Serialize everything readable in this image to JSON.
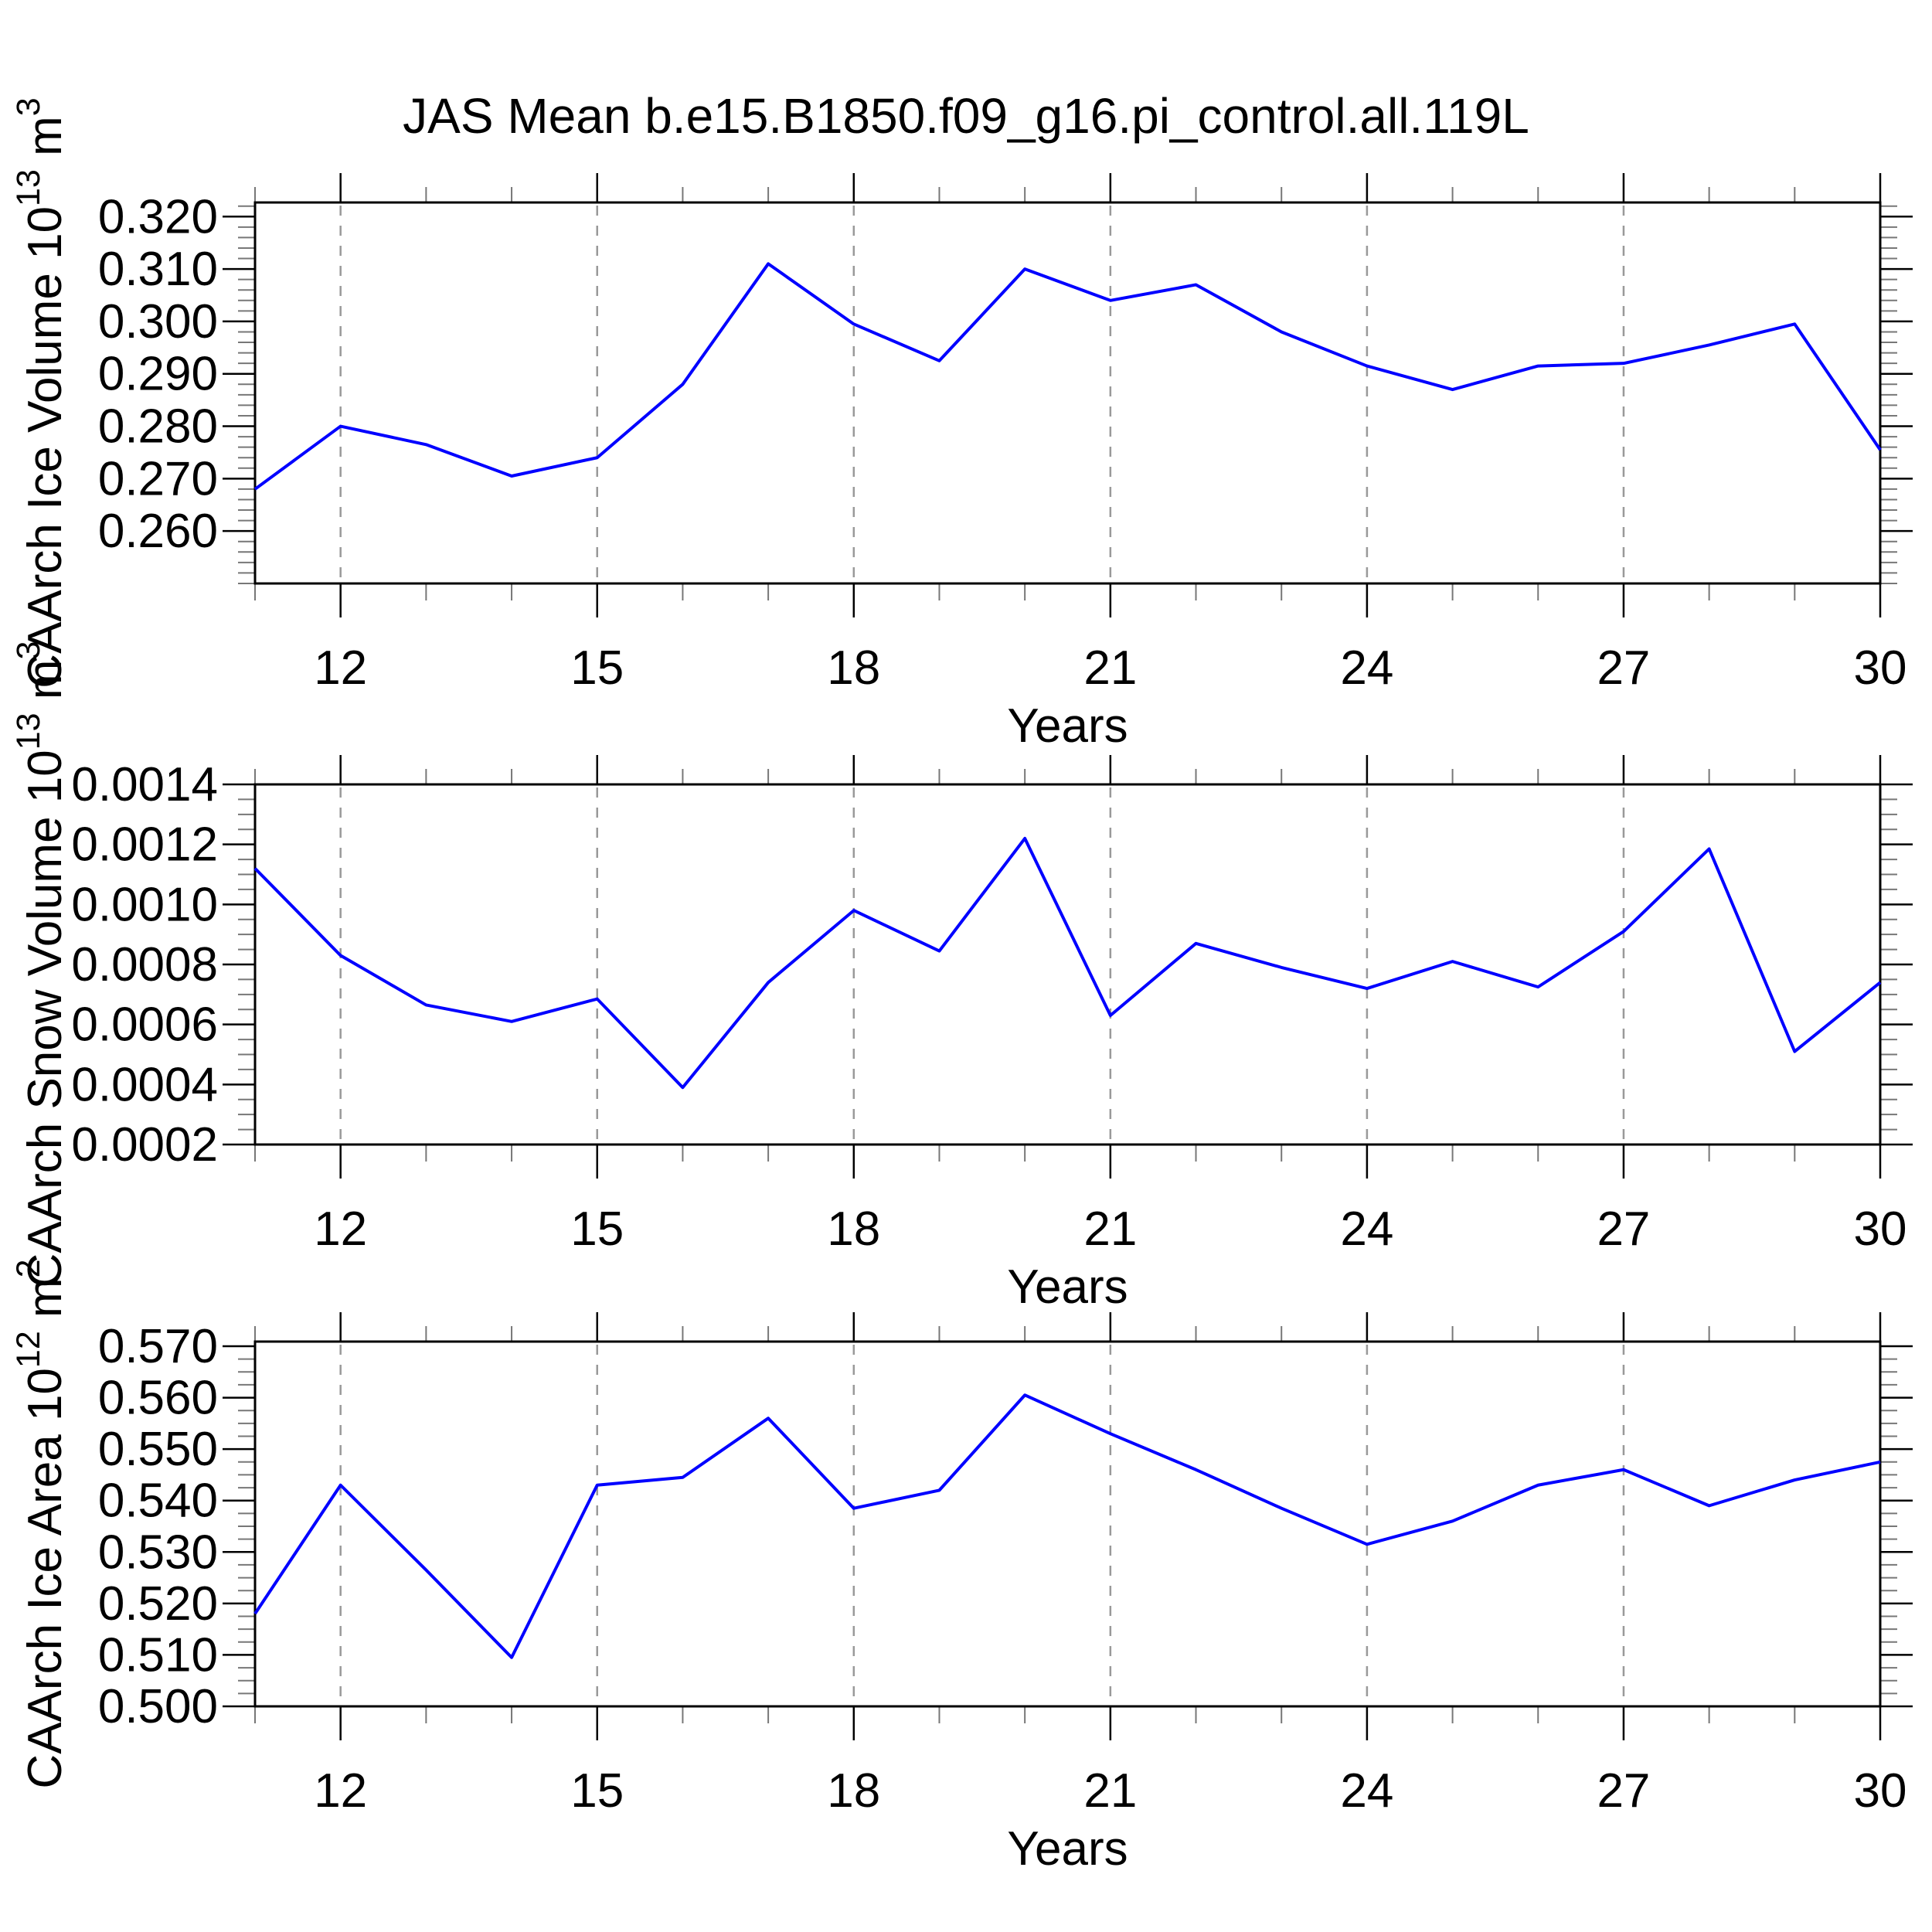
{
  "title": "JAS Mean b.e15.B1850.f09_g16.pi_control.all.119L",
  "xlabel": "Years",
  "xlim": [
    11,
    30
  ],
  "x_major_ticks": [
    12,
    15,
    18,
    21,
    24,
    27,
    30
  ],
  "x_gridline_years": [
    12,
    15,
    18,
    21,
    24,
    27
  ],
  "colors": {
    "line": "#0000ff",
    "frame": "#000000",
    "major_tick": "#000000",
    "minor_tick": "#777777",
    "gridline": "#999999",
    "text": "#000000",
    "background": "#ffffff"
  },
  "chart_data": [
    {
      "type": "line",
      "id": "ice-volume",
      "ylabel": "CAArch Ice Volume 10^13 m^3",
      "xlabel": "Years",
      "x": [
        11,
        12,
        13,
        14,
        15,
        16,
        17,
        18,
        19,
        20,
        21,
        22,
        23,
        24,
        25,
        26,
        27,
        28,
        29,
        30
      ],
      "values": [
        0.268,
        0.28,
        0.2765,
        0.2705,
        0.274,
        0.288,
        0.311,
        0.2995,
        0.2925,
        0.31,
        0.304,
        0.307,
        0.298,
        0.2915,
        0.287,
        0.2915,
        0.292,
        0.2955,
        0.2995,
        0.2755
      ],
      "ylim": [
        0.25,
        0.3227
      ],
      "yticks": [
        0.26,
        0.27,
        0.28,
        0.29,
        0.3,
        0.31,
        0.32
      ],
      "ytick_decimals": 3,
      "y_minor_step": 0.002,
      "grid": "vertical-dashed",
      "legend": "none"
    },
    {
      "type": "line",
      "id": "snow-volume",
      "ylabel": "CAArch Snow Volume 10^13 m^3",
      "xlabel": "Years",
      "x": [
        11,
        12,
        13,
        14,
        15,
        16,
        17,
        18,
        19,
        20,
        21,
        22,
        23,
        24,
        25,
        26,
        27,
        28,
        29,
        30
      ],
      "values": [
        0.00112,
        0.00083,
        0.000665,
        0.00061,
        0.000685,
        0.00039,
        0.00074,
        0.00098,
        0.000845,
        0.00122,
        0.00063,
        0.00087,
        0.00079,
        0.00072,
        0.00081,
        0.000725,
        0.00091,
        0.001185,
        0.00051,
        0.00074
      ],
      "ylim": [
        0.0002,
        0.0014
      ],
      "yticks": [
        0.0002,
        0.0004,
        0.0006,
        0.0008,
        0.001,
        0.0012,
        0.0014
      ],
      "ytick_decimals": 4,
      "y_minor_step": 5e-05,
      "grid": "vertical-dashed",
      "legend": "none"
    },
    {
      "type": "line",
      "id": "ice-area",
      "ylabel": "CAArch Ice Area 10^12 m^2",
      "xlabel": "Years",
      "x": [
        11,
        12,
        13,
        14,
        15,
        16,
        17,
        18,
        19,
        20,
        21,
        22,
        23,
        24,
        25,
        26,
        27,
        28,
        29,
        30
      ],
      "values": [
        0.518,
        0.543,
        0.5265,
        0.5095,
        0.543,
        0.5445,
        0.556,
        0.5385,
        0.542,
        0.5605,
        0.553,
        0.546,
        0.5385,
        0.5315,
        0.536,
        0.543,
        0.546,
        0.539,
        0.544,
        0.5475
      ],
      "ylim": [
        0.5,
        0.5709
      ],
      "yticks": [
        0.5,
        0.51,
        0.52,
        0.53,
        0.54,
        0.55,
        0.56,
        0.57
      ],
      "ytick_decimals": 3,
      "y_minor_step": 0.0025,
      "grid": "vertical-dashed",
      "legend": "none"
    }
  ]
}
